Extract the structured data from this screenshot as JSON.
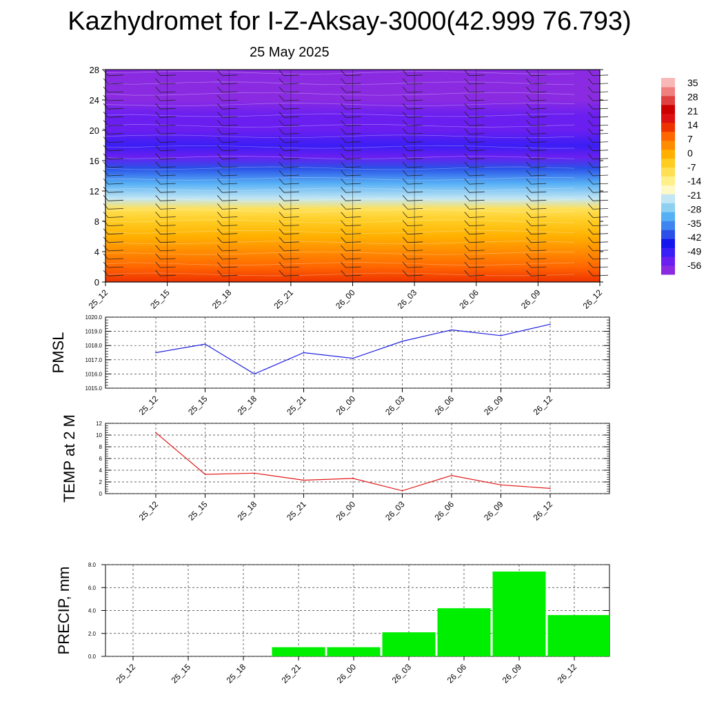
{
  "title": "Kazhydromet for I-Z-Aksay-3000(42.999 76.793)",
  "subtitle": "25 May 2025",
  "time_labels": [
    "25_12",
    "25_15",
    "25_18",
    "25_21",
    "26_00",
    "26_03",
    "26_06",
    "26_09",
    "26_12"
  ],
  "colors": {
    "pmsl_line": "#1f1fe0",
    "temp_line": "#e01818",
    "precip_bar": "#00ee00",
    "colorbar": [
      "#8a2be2",
      "#6a1ff0",
      "#3a1ef5",
      "#1515ee",
      "#2a50e8",
      "#3f85f0",
      "#56b0f5",
      "#8dd0f2",
      "#c2e6f4",
      "#fff9c8",
      "#fff08a",
      "#ffe055",
      "#ffcc22",
      "#ffb000",
      "#ff8c00",
      "#ff6600",
      "#ee3300",
      "#dd1111",
      "#cc0000",
      "#e04040",
      "#f08080",
      "#f8b8b8"
    ]
  },
  "chart_data": [
    {
      "type": "heatmap",
      "name": "cross-section",
      "x": [
        "25_12",
        "25_15",
        "25_18",
        "25_21",
        "26_00",
        "26_03",
        "26_06",
        "26_09",
        "26_12"
      ],
      "ylim": [
        0,
        28
      ],
      "yticks": [
        "0",
        "4",
        "8",
        "12",
        "16",
        "20",
        "24",
        "28"
      ],
      "colorbar_ticks": [
        "35",
        "28",
        "21",
        "14",
        "7",
        "0",
        "-7",
        "-14",
        "-21",
        "-28",
        "-35",
        "-42",
        "-49",
        "-56"
      ],
      "approx_temperature_profile": [
        {
          "height": 0,
          "value": 12
        },
        {
          "height": 2,
          "value": 8
        },
        {
          "height": 4,
          "value": 4
        },
        {
          "height": 6,
          "value": 0
        },
        {
          "height": 8,
          "value": -4
        },
        {
          "height": 9.6,
          "value": -9
        },
        {
          "height": 11,
          "value": -22
        },
        {
          "height": 13,
          "value": -32
        },
        {
          "height": 15,
          "value": -42
        },
        {
          "height": 16.5,
          "value": -52
        },
        {
          "height": 18,
          "value": -50
        },
        {
          "height": 20,
          "value": -52
        },
        {
          "height": 22,
          "value": -55
        },
        {
          "height": 24,
          "value": -58
        },
        {
          "height": 28,
          "value": -60
        }
      ],
      "wind_barbs": true
    },
    {
      "type": "line",
      "name": "pmsl",
      "ylabel": "PMSL",
      "x": [
        "25_12",
        "25_15",
        "25_18",
        "25_21",
        "26_00",
        "26_03",
        "26_06",
        "26_09",
        "26_12"
      ],
      "values": [
        1017.5,
        1018.1,
        1016.0,
        1017.5,
        1017.1,
        1018.3,
        1019.1,
        1018.7,
        1019.5
      ],
      "ylim": [
        1015.0,
        1020.0
      ],
      "yticks": [
        "1015.0",
        "1016.0",
        "1017.0",
        "1018.0",
        "1019.0",
        "1020.0"
      ],
      "grid": true
    },
    {
      "type": "line",
      "name": "temp-2m",
      "ylabel": "TEMP at 2 M",
      "x": [
        "25_12",
        "25_15",
        "25_18",
        "25_21",
        "26_00",
        "26_03",
        "26_06",
        "26_09",
        "26_12"
      ],
      "values": [
        10.4,
        3.3,
        3.5,
        2.3,
        2.6,
        0.5,
        3.1,
        1.5,
        0.9
      ],
      "ylim": [
        0,
        12
      ],
      "yticks": [
        "0",
        "2",
        "4",
        "6",
        "8",
        "10",
        "12"
      ],
      "grid": true
    },
    {
      "type": "bar",
      "name": "precip",
      "ylabel": "PRECIP, mm",
      "categories": [
        "25_12",
        "25_15",
        "25_18",
        "25_21",
        "26_00",
        "26_03",
        "26_06",
        "26_09",
        "26_12"
      ],
      "values": [
        0.0,
        0.0,
        0.0,
        0.8,
        0.8,
        2.1,
        4.2,
        7.4,
        3.6
      ],
      "ylim": [
        0,
        8.0
      ],
      "yticks": [
        "0.0",
        "2.0",
        "4.0",
        "6.0",
        "8.0"
      ],
      "grid": true
    }
  ]
}
